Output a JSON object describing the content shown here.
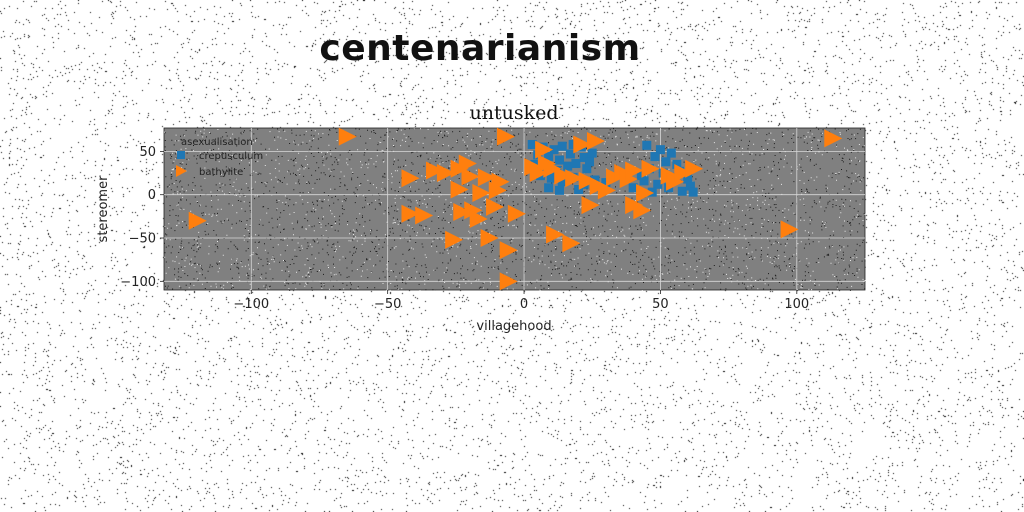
{
  "page_title": "centenarianism",
  "colors": {
    "crepusculum": "#1f77b4",
    "bathylite": "#ff7f0e",
    "plot_bg": "#808080",
    "grid": "#d8d8d8"
  },
  "chart_data": {
    "type": "scatter",
    "title": "untusked",
    "xlabel": "villagehood",
    "ylabel": "stereomer",
    "xlim": [
      -132,
      125
    ],
    "ylim": [
      -110,
      77
    ],
    "xticks": [
      -100,
      -50,
      0,
      50,
      100
    ],
    "yticks": [
      -100,
      -50,
      0,
      50
    ],
    "xtick_labels": [
      "−100",
      "−50",
      "0",
      "50",
      "100"
    ],
    "ytick_labels": [
      "−100",
      "−50",
      "0",
      "50"
    ],
    "grid": true,
    "legend": {
      "title": "asexualisation",
      "placement": "top-left"
    },
    "series": [
      {
        "name": "crepusculum",
        "marker": "square",
        "points": [
          [
            3,
            58
          ],
          [
            7,
            55
          ],
          [
            11,
            52
          ],
          [
            14,
            56
          ],
          [
            18,
            58
          ],
          [
            21,
            55
          ],
          [
            5,
            46
          ],
          [
            9,
            44
          ],
          [
            13,
            40
          ],
          [
            17,
            47
          ],
          [
            22,
            43
          ],
          [
            25,
            48
          ],
          [
            4,
            35
          ],
          [
            8,
            31
          ],
          [
            12,
            28
          ],
          [
            16,
            33
          ],
          [
            19,
            36
          ],
          [
            23,
            30
          ],
          [
            24,
            38
          ],
          [
            6,
            22
          ],
          [
            10,
            19
          ],
          [
            14,
            15
          ],
          [
            18,
            20
          ],
          [
            22,
            12
          ],
          [
            26,
            17
          ],
          [
            9,
            8
          ],
          [
            13,
            5
          ],
          [
            20,
            6
          ],
          [
            27,
            9
          ],
          [
            30,
            14
          ],
          [
            45,
            57
          ],
          [
            50,
            52
          ],
          [
            54,
            48
          ],
          [
            48,
            44
          ],
          [
            52,
            38
          ],
          [
            56,
            35
          ],
          [
            46,
            30
          ],
          [
            51,
            25
          ],
          [
            55,
            20
          ],
          [
            44,
            16
          ],
          [
            49,
            12
          ],
          [
            53,
            8
          ],
          [
            58,
            4
          ],
          [
            47,
            3
          ],
          [
            43,
            22
          ],
          [
            57,
            27
          ],
          [
            60,
            18
          ],
          [
            61,
            10
          ],
          [
            62,
            3
          ],
          [
            40,
            8
          ]
        ]
      },
      {
        "name": "bathylite",
        "marker": "triangle-right",
        "points": [
          [
            -65,
            67
          ],
          [
            -7,
            67
          ],
          [
            113,
            65
          ],
          [
            26,
            62
          ],
          [
            21,
            58
          ],
          [
            7,
            52
          ],
          [
            -33,
            28
          ],
          [
            -29,
            25
          ],
          [
            -24,
            30
          ],
          [
            -21,
            36
          ],
          [
            -20,
            21
          ],
          [
            -14,
            20
          ],
          [
            -9,
            15
          ],
          [
            -10,
            5
          ],
          [
            -16,
            2
          ],
          [
            -24,
            6
          ],
          [
            -42,
            19
          ],
          [
            3,
            32
          ],
          [
            8,
            36
          ],
          [
            10,
            30
          ],
          [
            5,
            25
          ],
          [
            14,
            22
          ],
          [
            18,
            19
          ],
          [
            23,
            16
          ],
          [
            27,
            10
          ],
          [
            30,
            5
          ],
          [
            33,
            20
          ],
          [
            36,
            25
          ],
          [
            38,
            18
          ],
          [
            40,
            28
          ],
          [
            46,
            30
          ],
          [
            53,
            22
          ],
          [
            55,
            15
          ],
          [
            58,
            25
          ],
          [
            62,
            30
          ],
          [
            44,
            2
          ],
          [
            40,
            -12
          ],
          [
            43,
            -18
          ],
          [
            24,
            -12
          ],
          [
            -42,
            -22
          ],
          [
            -37,
            -24
          ],
          [
            -23,
            -20
          ],
          [
            -19,
            -18
          ],
          [
            -11,
            -14
          ],
          [
            -3,
            -22
          ],
          [
            -17,
            -28
          ],
          [
            -26,
            -52
          ],
          [
            -13,
            -50
          ],
          [
            -6,
            -64
          ],
          [
            11,
            -46
          ],
          [
            17,
            -56
          ],
          [
            -6,
            -100
          ],
          [
            -120,
            -30
          ],
          [
            97,
            -40
          ]
        ]
      }
    ]
  }
}
